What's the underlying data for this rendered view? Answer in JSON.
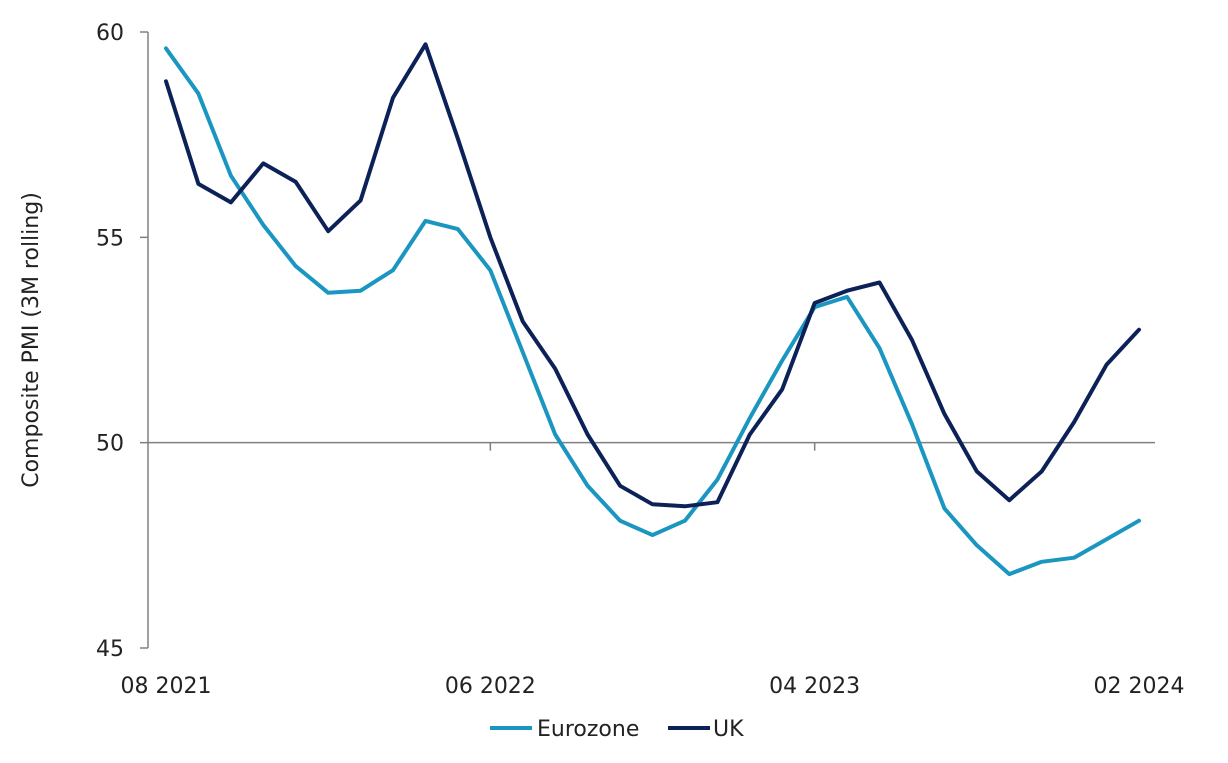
{
  "chart_data": {
    "type": "line",
    "title": "",
    "xlabel": "",
    "ylabel": "Composite PMI (3M rolling)",
    "ylim": [
      45,
      60
    ],
    "yticks": [
      45,
      50,
      55,
      60
    ],
    "reference_line": 50,
    "x": [
      "08 2021",
      "09 2021",
      "10 2021",
      "11 2021",
      "12 2021",
      "01 2022",
      "02 2022",
      "03 2022",
      "04 2022",
      "05 2022",
      "06 2022",
      "07 2022",
      "08 2022",
      "09 2022",
      "10 2022",
      "11 2022",
      "12 2022",
      "01 2023",
      "02 2023",
      "03 2023",
      "04 2023",
      "05 2023",
      "06 2023",
      "07 2023",
      "08 2023",
      "09 2023",
      "10 2023",
      "11 2023",
      "12 2023",
      "01 2024",
      "02 2024"
    ],
    "xtick_labels": [
      "08 2021",
      "06 2022",
      "04 2023",
      "02 2024"
    ],
    "legend_position": "bottom-center",
    "series": [
      {
        "name": "Eurozone",
        "color": "#1a96c0",
        "values": [
          59.6,
          58.5,
          56.5,
          55.3,
          54.3,
          53.65,
          53.7,
          54.2,
          55.4,
          55.2,
          54.2,
          52.2,
          50.2,
          48.95,
          48.1,
          47.75,
          48.1,
          49.1,
          50.6,
          52.0,
          53.3,
          53.55,
          52.3,
          50.45,
          48.4,
          47.5,
          46.8,
          47.1,
          47.2,
          47.65,
          48.1
        ]
      },
      {
        "name": "UK",
        "color": "#0c2157",
        "values": [
          58.8,
          56.3,
          55.85,
          56.8,
          56.35,
          55.15,
          55.9,
          58.4,
          59.7,
          57.4,
          55.0,
          52.95,
          51.8,
          50.2,
          48.95,
          48.5,
          48.45,
          48.55,
          50.2,
          51.3,
          53.4,
          53.7,
          53.9,
          52.5,
          50.7,
          49.3,
          48.6,
          49.3,
          50.5,
          51.9,
          52.75
        ]
      }
    ]
  }
}
